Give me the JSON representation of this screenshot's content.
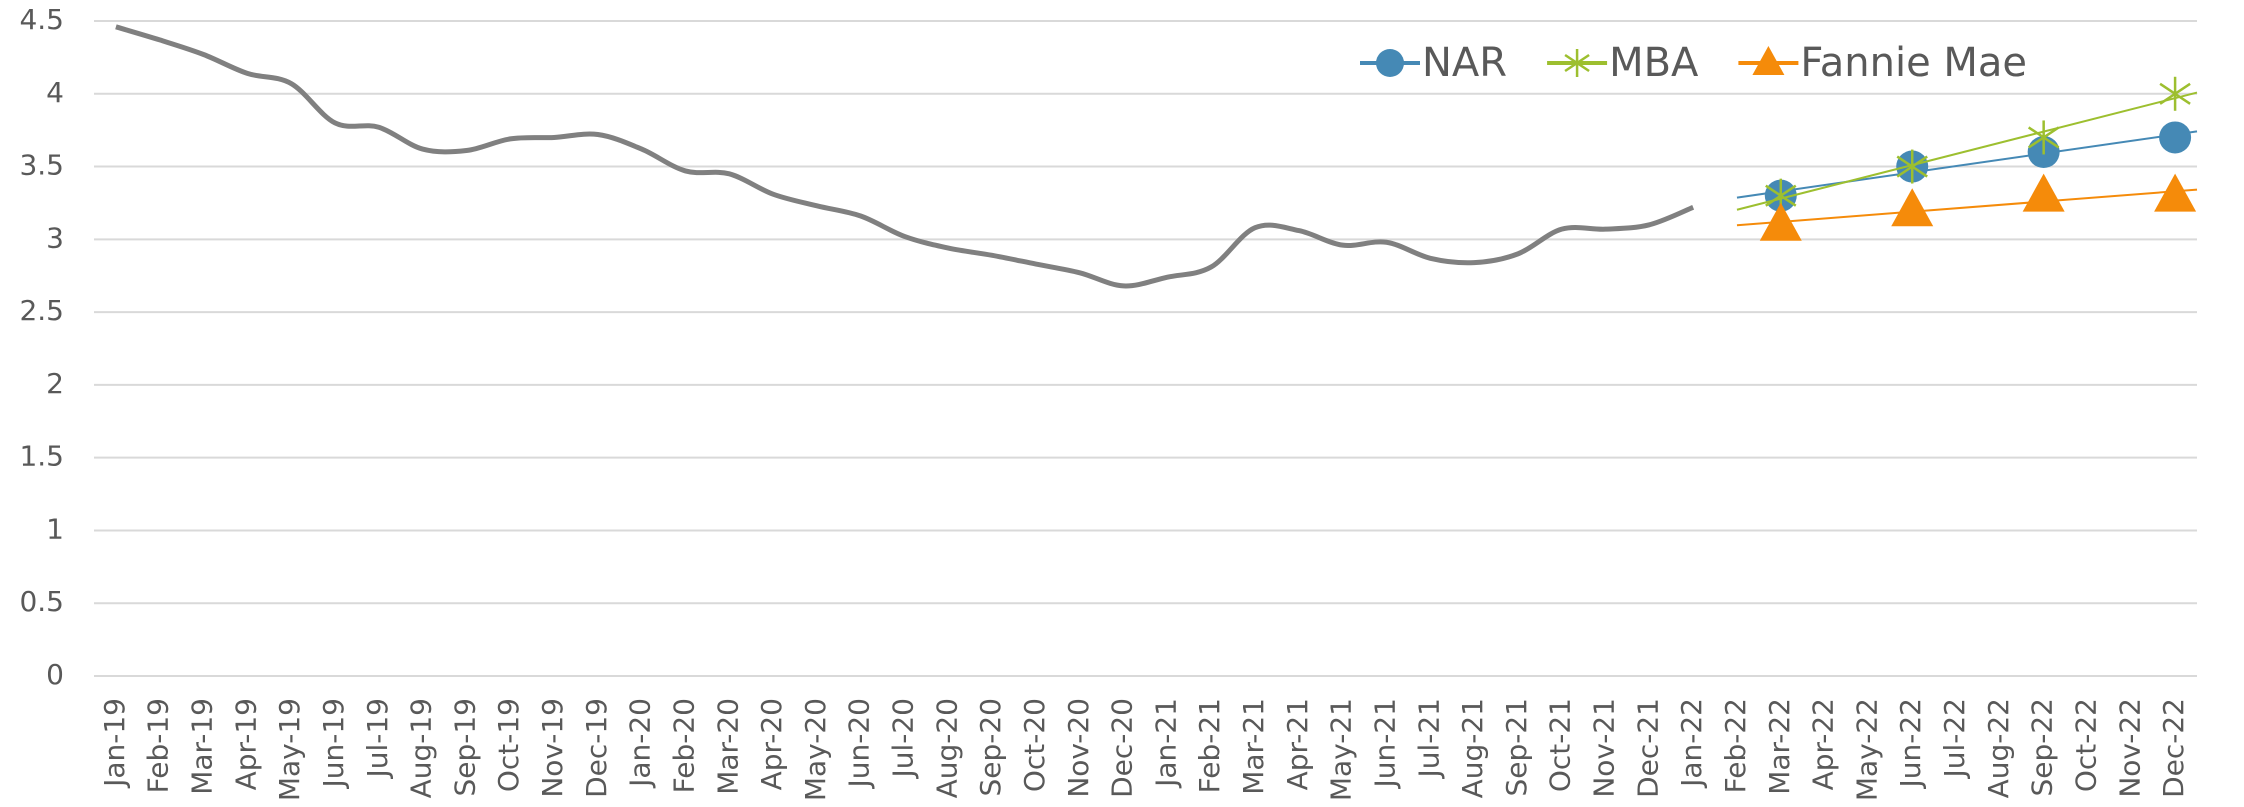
{
  "chart_data": {
    "type": "line",
    "categories": [
      "Jan-19",
      "Feb-19",
      "Mar-19",
      "Apr-19",
      "May-19",
      "Jun-19",
      "Jul-19",
      "Aug-19",
      "Sep-19",
      "Oct-19",
      "Nov-19",
      "Dec-19",
      "Jan-20",
      "Feb-20",
      "Mar-20",
      "Apr-20",
      "May-20",
      "Jun-20",
      "Jul-20",
      "Aug-20",
      "Sep-20",
      "Oct-20",
      "Nov-20",
      "Dec-20",
      "Jan-21",
      "Feb-21",
      "Mar-21",
      "Apr-21",
      "May-21",
      "Jun-21",
      "Jul-21",
      "Aug-21",
      "Sep-21",
      "Oct-21",
      "Nov-21",
      "Dec-21",
      "Jan-22",
      "Feb-22",
      "Mar-22",
      "Apr-22",
      "May-22",
      "Jun-22",
      "Jul-22",
      "Aug-22",
      "Sep-22",
      "Oct-22",
      "Nov-22",
      "Dec-22"
    ],
    "series": [
      {
        "color": "#808080",
        "values": [
          4.46,
          4.37,
          4.27,
          4.14,
          4.07,
          3.8,
          3.77,
          3.62,
          3.61,
          3.69,
          3.7,
          3.72,
          3.62,
          3.47,
          3.45,
          3.31,
          3.23,
          3.16,
          3.02,
          2.94,
          2.89,
          2.83,
          2.77,
          2.68,
          2.74,
          2.81,
          3.08,
          3.06,
          2.96,
          2.98,
          2.87,
          2.84,
          2.9,
          3.07,
          3.07,
          3.1,
          3.22,
          null,
          null,
          null,
          null,
          null,
          null,
          null,
          null,
          null,
          null,
          null
        ]
      },
      {
        "name": "NAR",
        "color": "#4589b5",
        "marker": "circle",
        "values": [
          null,
          null,
          null,
          null,
          null,
          null,
          null,
          null,
          null,
          null,
          null,
          null,
          null,
          null,
          null,
          null,
          null,
          null,
          null,
          null,
          null,
          null,
          null,
          null,
          null,
          null,
          null,
          null,
          null,
          null,
          null,
          null,
          null,
          null,
          null,
          null,
          null,
          null,
          3.3,
          null,
          null,
          3.5,
          null,
          null,
          3.6,
          null,
          null,
          3.7
        ]
      },
      {
        "name": "MBA",
        "color": "#9dbf2f",
        "marker": "star",
        "values": [
          null,
          null,
          null,
          null,
          null,
          null,
          null,
          null,
          null,
          null,
          null,
          null,
          null,
          null,
          null,
          null,
          null,
          null,
          null,
          null,
          null,
          null,
          null,
          null,
          null,
          null,
          null,
          null,
          null,
          null,
          null,
          null,
          null,
          null,
          null,
          null,
          null,
          null,
          3.3,
          null,
          null,
          3.5,
          null,
          null,
          3.7,
          null,
          null,
          4.0
        ]
      },
      {
        "name": "Fannie Mae",
        "color": "#f58b0a",
        "marker": "triangle",
        "values": [
          null,
          null,
          null,
          null,
          null,
          null,
          null,
          null,
          null,
          null,
          null,
          null,
          null,
          null,
          null,
          null,
          null,
          null,
          null,
          null,
          null,
          null,
          null,
          null,
          null,
          null,
          null,
          null,
          null,
          null,
          null,
          null,
          null,
          null,
          null,
          null,
          null,
          null,
          3.1,
          null,
          null,
          3.2,
          null,
          null,
          3.3,
          null,
          null,
          3.3
        ]
      }
    ],
    "ylim": [
      0,
      4.5
    ],
    "yticks": [
      0,
      0.5,
      1,
      1.5,
      2,
      2.5,
      3,
      3.5,
      4,
      4.5
    ],
    "grid": true,
    "trendline": true,
    "legend": "top-right"
  }
}
